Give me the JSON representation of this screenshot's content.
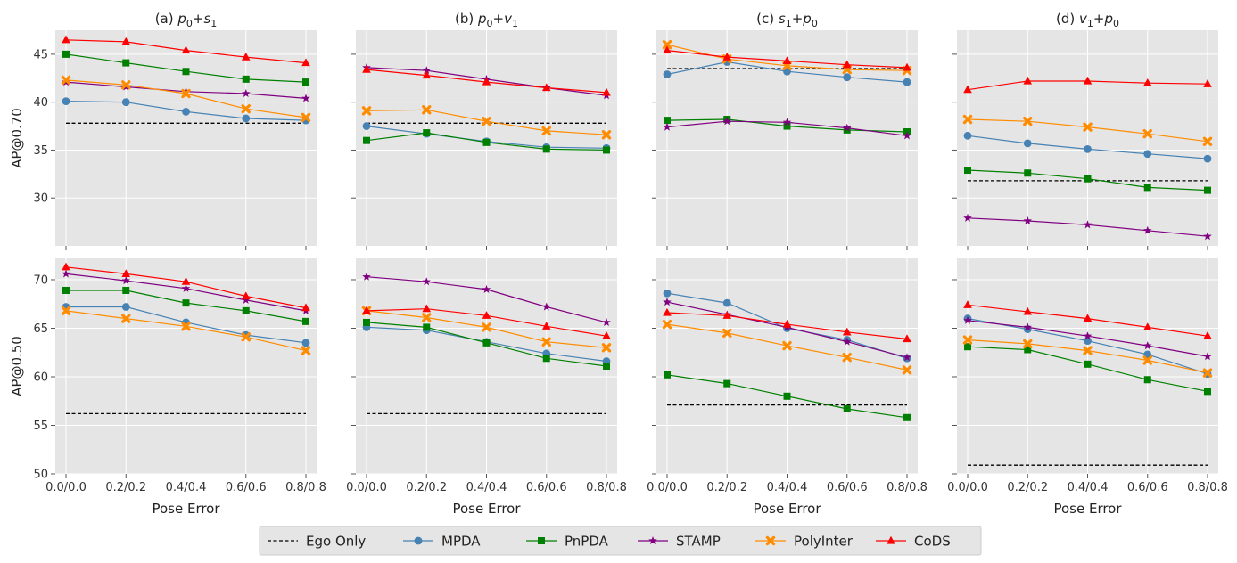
{
  "chart_data": {
    "type": "line",
    "x_categories": [
      "0.0/0.0",
      "0.2/0.2",
      "0.4/0.4",
      "0.6/0.6",
      "0.8/0.8"
    ],
    "xlabel": "Pose Error",
    "ylabels": [
      "AP@0.70",
      "AP@0.50"
    ],
    "ylim_rows": [
      [
        25,
        47.5
      ],
      [
        50,
        72.2
      ]
    ],
    "yticks_rows": [
      [
        30,
        35,
        40,
        45
      ],
      [
        50,
        55,
        60,
        65,
        70
      ]
    ],
    "column_titles": [
      {
        "letter": "(a)",
        "a": "p",
        "a_sub": "0",
        "b": "s",
        "b_sub": "1"
      },
      {
        "letter": "(b)",
        "a": "p",
        "a_sub": "0",
        "b": "v",
        "b_sub": "1"
      },
      {
        "letter": "(c)",
        "a": "s",
        "a_sub": "1",
        "b": "p",
        "b_sub": "0"
      },
      {
        "letter": "(d)",
        "a": "v",
        "a_sub": "1",
        "b": "p",
        "b_sub": "0"
      }
    ],
    "series_meta": [
      {
        "name": "Ego Only",
        "color": "#000000",
        "marker": "none",
        "dashed": true
      },
      {
        "name": "MPDA",
        "color": "#4682b4",
        "marker": "circle"
      },
      {
        "name": "PnPDA",
        "color": "#008000",
        "marker": "square"
      },
      {
        "name": "STAMP",
        "color": "#800080",
        "marker": "star"
      },
      {
        "name": "PolyInter",
        "color": "#ff8c00",
        "marker": "x"
      },
      {
        "name": "CoDS",
        "color": "#ff0000",
        "marker": "triangle"
      }
    ],
    "panels": [
      {
        "row": 0,
        "col": 0,
        "series": [
          [
            37.8,
            37.8,
            37.8,
            37.8,
            37.8
          ],
          [
            40.1,
            40.0,
            39.0,
            38.3,
            38.1
          ],
          [
            45.0,
            44.1,
            43.2,
            42.4,
            42.1
          ],
          [
            42.1,
            41.6,
            41.1,
            40.9,
            40.4
          ],
          [
            42.3,
            41.8,
            40.9,
            39.3,
            38.4
          ],
          [
            46.5,
            46.3,
            45.4,
            44.7,
            44.1
          ]
        ]
      },
      {
        "row": 0,
        "col": 1,
        "series": [
          [
            37.8,
            37.8,
            37.8,
            37.8,
            37.8
          ],
          [
            37.5,
            36.7,
            35.9,
            35.3,
            35.2
          ],
          [
            36.0,
            36.8,
            35.8,
            35.1,
            35.0
          ],
          [
            43.6,
            43.3,
            42.4,
            41.5,
            40.7
          ],
          [
            39.1,
            39.2,
            38.0,
            37.0,
            36.6
          ],
          [
            43.4,
            42.8,
            42.1,
            41.5,
            41.0
          ]
        ]
      },
      {
        "row": 0,
        "col": 2,
        "series": [
          [
            43.5,
            43.5,
            43.5,
            43.5,
            43.5
          ],
          [
            42.9,
            44.2,
            43.2,
            42.6,
            42.1
          ],
          [
            38.1,
            38.2,
            37.5,
            37.1,
            36.9
          ],
          [
            37.4,
            38.0,
            37.9,
            37.3,
            36.5
          ],
          [
            46.0,
            44.5,
            43.8,
            43.4,
            43.3
          ],
          [
            45.4,
            44.7,
            44.3,
            43.9,
            43.6
          ]
        ]
      },
      {
        "row": 0,
        "col": 3,
        "series": [
          [
            31.8,
            31.8,
            31.8,
            31.8,
            31.8
          ],
          [
            36.5,
            35.7,
            35.1,
            34.6,
            34.1
          ],
          [
            32.9,
            32.6,
            32.0,
            31.1,
            30.8
          ],
          [
            27.9,
            27.6,
            27.2,
            26.6,
            26.0
          ],
          [
            38.2,
            38.0,
            37.4,
            36.7,
            35.9
          ],
          [
            41.3,
            42.2,
            42.2,
            42.0,
            41.9
          ]
        ]
      },
      {
        "row": 1,
        "col": 0,
        "series": [
          [
            56.2,
            56.2,
            56.2,
            56.2,
            56.2
          ],
          [
            67.2,
            67.2,
            65.6,
            64.3,
            63.5
          ],
          [
            68.9,
            68.9,
            67.6,
            66.8,
            65.7
          ],
          [
            70.6,
            69.9,
            69.1,
            67.9,
            66.8
          ],
          [
            66.8,
            66.0,
            65.2,
            64.1,
            62.7
          ],
          [
            71.3,
            70.6,
            69.8,
            68.3,
            67.1
          ]
        ]
      },
      {
        "row": 1,
        "col": 1,
        "series": [
          [
            56.2,
            56.2,
            56.2,
            56.2,
            56.2
          ],
          [
            65.1,
            64.8,
            63.6,
            62.4,
            61.6
          ],
          [
            65.6,
            65.1,
            63.5,
            61.9,
            61.1
          ],
          [
            70.3,
            69.8,
            69.0,
            67.2,
            65.6
          ],
          [
            66.8,
            66.1,
            65.1,
            63.6,
            63.0
          ],
          [
            66.8,
            67.0,
            66.3,
            65.2,
            64.2
          ]
        ]
      },
      {
        "row": 1,
        "col": 2,
        "series": [
          [
            57.1,
            57.1,
            57.1,
            57.1,
            57.1
          ],
          [
            68.6,
            67.6,
            65.0,
            63.8,
            61.9
          ],
          [
            60.2,
            59.3,
            58.0,
            56.7,
            55.8
          ],
          [
            67.7,
            66.4,
            65.1,
            63.6,
            62.0
          ],
          [
            65.4,
            64.5,
            63.2,
            62.0,
            60.7
          ],
          [
            66.6,
            66.3,
            65.4,
            64.6,
            63.9
          ]
        ]
      },
      {
        "row": 1,
        "col": 3,
        "series": [
          [
            50.9,
            50.9,
            50.9,
            50.9,
            50.9
          ],
          [
            66.0,
            64.9,
            63.7,
            62.3,
            60.3
          ],
          [
            63.1,
            62.8,
            61.3,
            59.7,
            58.5
          ],
          [
            65.8,
            65.1,
            64.2,
            63.2,
            62.1
          ],
          [
            63.8,
            63.4,
            62.7,
            61.7,
            60.4
          ],
          [
            67.4,
            66.7,
            66.0,
            65.1,
            64.2
          ]
        ]
      }
    ]
  }
}
